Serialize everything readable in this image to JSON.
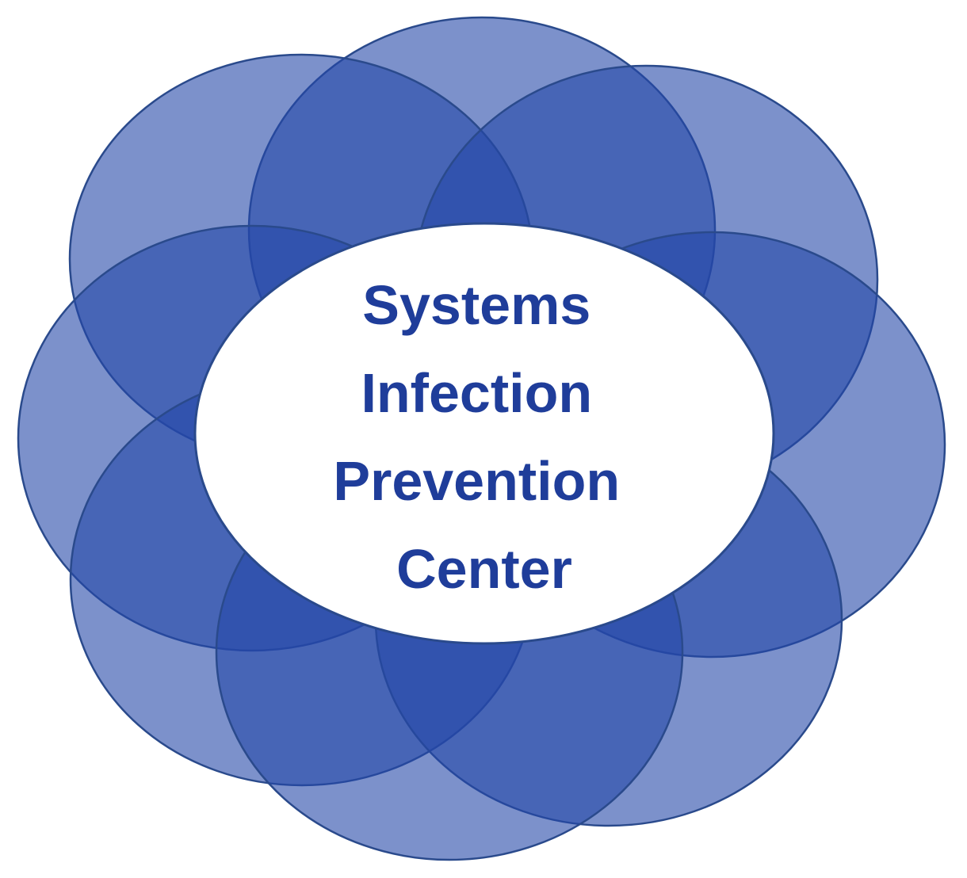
{
  "diagram": {
    "type": "overlapping-circles-ring",
    "petal_color": "#2548a8",
    "petal_outline_color": "#2a4a8c",
    "center_fill": "#ffffff",
    "label_color": "#1f3d9a",
    "petal_count": 8,
    "center": {
      "lines": [
        "Systems",
        "Infection",
        "Prevention",
        "Center"
      ]
    }
  }
}
